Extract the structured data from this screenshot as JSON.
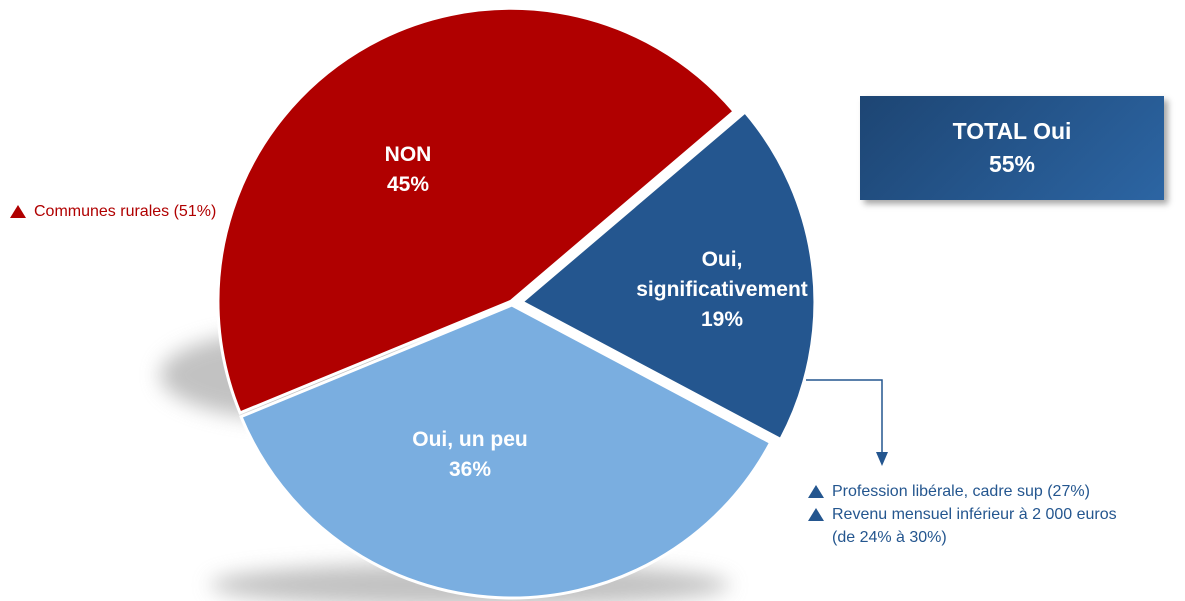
{
  "chart_data": {
    "type": "pie",
    "categories": [
      "NON",
      "Oui, significativement",
      "Oui, un peu"
    ],
    "values": [
      45,
      19,
      36
    ],
    "value_labels": [
      "45%",
      "19%",
      "36%"
    ],
    "colors": [
      "#b00000",
      "#24568f",
      "#7aaee0"
    ],
    "annotations": {
      "total": {
        "label": "TOTAL Oui",
        "value_label": "55%"
      },
      "non_note": [
        "Communes rurales (51%)"
      ],
      "oui_notes": [
        "Profession libérale, cadre sup (27%)",
        "Revenu mensuel inférieur à 2 000 euros (de 24% à 30%)"
      ]
    }
  }
}
